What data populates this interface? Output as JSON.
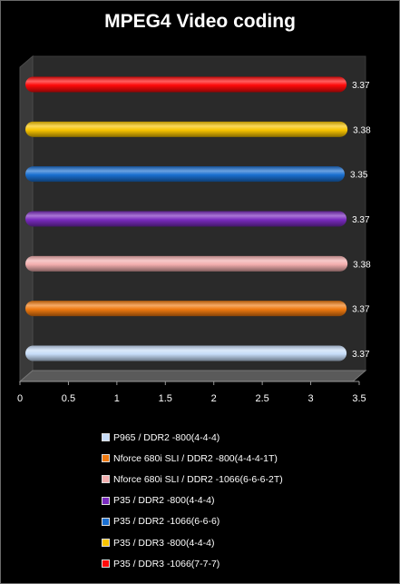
{
  "chart_data": {
    "type": "bar",
    "orientation": "horizontal",
    "title": "MPEG4 Video coding",
    "xlabel": "",
    "ylabel": "",
    "xlim": [
      0,
      3.5
    ],
    "xticks": [
      "0",
      "0.5",
      "1",
      "1.5",
      "2",
      "2.5",
      "3",
      "3.5"
    ],
    "grid": false,
    "legend_position": "bottom",
    "series": [
      {
        "name": "P965 / DDR2 -800(4-4-4)",
        "value": 3.37,
        "label": "3.37",
        "color": "#c6dcf7"
      },
      {
        "name": "Nforce 680i SLI / DDR2 -800(4-4-4-1T)",
        "value": 3.37,
        "label": "3.37",
        "color": "#f07a10"
      },
      {
        "name": "Nforce 680i SLI / DDR2 -1066(6-6-6-2T)",
        "value": 3.38,
        "label": "3.38",
        "color": "#f2aeae"
      },
      {
        "name": "P35 / DDR2 -800(4-4-4)",
        "value": 3.37,
        "label": "3.37",
        "color": "#7a2bbf"
      },
      {
        "name": "P35 / DDR2 -1066(6-6-6)",
        "value": 3.35,
        "label": "3.35",
        "color": "#1a6fd0"
      },
      {
        "name": "P35 / DDR3 -800(4-4-4)",
        "value": 3.38,
        "label": "3.38",
        "color": "#f8c400"
      },
      {
        "name": "P35 / DDR3 -1066(7-7-7)",
        "value": 3.37,
        "label": "3.37",
        "color": "#ff0a0a"
      }
    ]
  }
}
